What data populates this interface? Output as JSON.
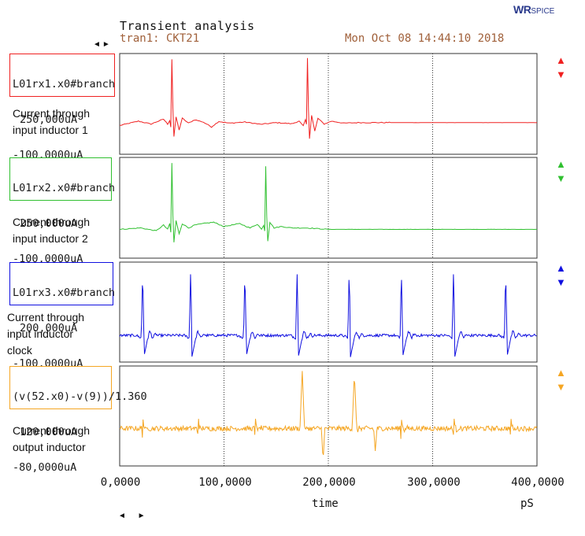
{
  "header": {
    "title": "Transient analysis",
    "subtitle": "tran1: CKT21",
    "date": "Mon Oct 08 14:44:10 2018",
    "logo_main": "WR",
    "logo_small": "SPICE",
    "top_nav": "◄►",
    "bottom_nav": "◄ ►"
  },
  "colors": {
    "red": "#f02020",
    "green": "#30c030",
    "blue": "#1010e0",
    "orange": "#f5a623",
    "grid": "#333333"
  },
  "chart_data": {
    "type": "line",
    "x_axis": {
      "label": "time",
      "unit": "pS",
      "range": [
        0,
        400000
      ],
      "tick_labels": [
        "0,0000",
        "100,0000",
        "200,0000",
        "300,0000",
        "400,0000"
      ]
    },
    "grid": true,
    "panels": [
      {
        "name": "L01rx1.x0#branch",
        "color_key": "red",
        "ymax_label": "250,000uA",
        "ymin_label": "-100,0000uA",
        "ylim": [
          -100,
          250
        ],
        "caption": [
          "Current through",
          "input inductor 1"
        ],
        "baseline": 10,
        "x": [
          0,
          18000,
          30000,
          42000,
          46000,
          48000,
          49000,
          50000,
          51000,
          52000,
          54000,
          57000,
          60000,
          66000,
          72000,
          80000,
          88000,
          95000,
          105000,
          120000,
          135000,
          150000,
          165000,
          172000,
          176000,
          178000,
          179000,
          180000,
          181000,
          182000,
          184000,
          187000,
          190000,
          196000,
          203000,
          215000,
          230000,
          260000,
          300000,
          350000,
          400000
        ],
        "y": [
          0,
          15,
          5,
          22,
          5,
          18,
          -5,
          230,
          60,
          -40,
          30,
          -15,
          25,
          8,
          20,
          12,
          -5,
          14,
          8,
          12,
          4,
          10,
          6,
          15,
          -2,
          20,
          3,
          235,
          55,
          -45,
          35,
          -20,
          25,
          5,
          15,
          8,
          10,
          10,
          10,
          10,
          10
        ]
      },
      {
        "name": "L01rx2.x0#branch",
        "color_key": "green",
        "ymax_label": "250,000uA",
        "ymin_label": "-100,0000uA",
        "ylim": [
          -100,
          250
        ],
        "caption": [
          "Current through",
          "input inductor 2"
        ],
        "baseline": 0,
        "x": [
          0,
          20000,
          35000,
          42000,
          46000,
          48000,
          49000,
          50000,
          51000,
          52000,
          54000,
          57000,
          60000,
          66000,
          72000,
          80000,
          90000,
          100000,
          115000,
          125000,
          132000,
          136000,
          138000,
          139000,
          140000,
          141000,
          142000,
          144000,
          148000,
          155000,
          165000,
          180000,
          200000,
          250000,
          300000,
          350000,
          400000
        ],
        "y": [
          0,
          5,
          -5,
          15,
          0,
          20,
          -10,
          230,
          50,
          -45,
          30,
          -15,
          20,
          5,
          15,
          20,
          25,
          10,
          20,
          5,
          18,
          0,
          15,
          -5,
          220,
          45,
          -40,
          25,
          5,
          10,
          5,
          5,
          0,
          0,
          0,
          0,
          0
        ]
      },
      {
        "name": "L01rx3.x0#branch",
        "color_key": "blue",
        "ymax_label": "200,000uA",
        "ymin_label": "-100,0000uA",
        "ylim": [
          -100,
          200
        ],
        "caption": [
          "Current through",
          "input inductor",
          "clock"
        ],
        "baseline": -20,
        "spike_times": [
          22000,
          68000,
          120000,
          170000,
          220000,
          270000,
          320000,
          370000
        ],
        "spike_peak": 180,
        "spike_trough": -85
      },
      {
        "name": "(v(52.x0)-v(9))/1.360",
        "color_key": "orange",
        "ymax_label": "120,000uA",
        "ymin_label": "-80,0000uA",
        "ylim": [
          -80,
          120
        ],
        "caption": [
          "Current through",
          "output inductor"
        ],
        "baseline": -5,
        "spike_times": [
          22000,
          75000,
          130000,
          175000,
          225000,
          270000,
          320000,
          375000
        ],
        "big_spikes": [
          [
            175000,
            110
          ],
          [
            225000,
            105
          ]
        ],
        "big_troughs": [
          [
            195000,
            -70
          ],
          [
            245000,
            -50
          ]
        ]
      }
    ]
  }
}
